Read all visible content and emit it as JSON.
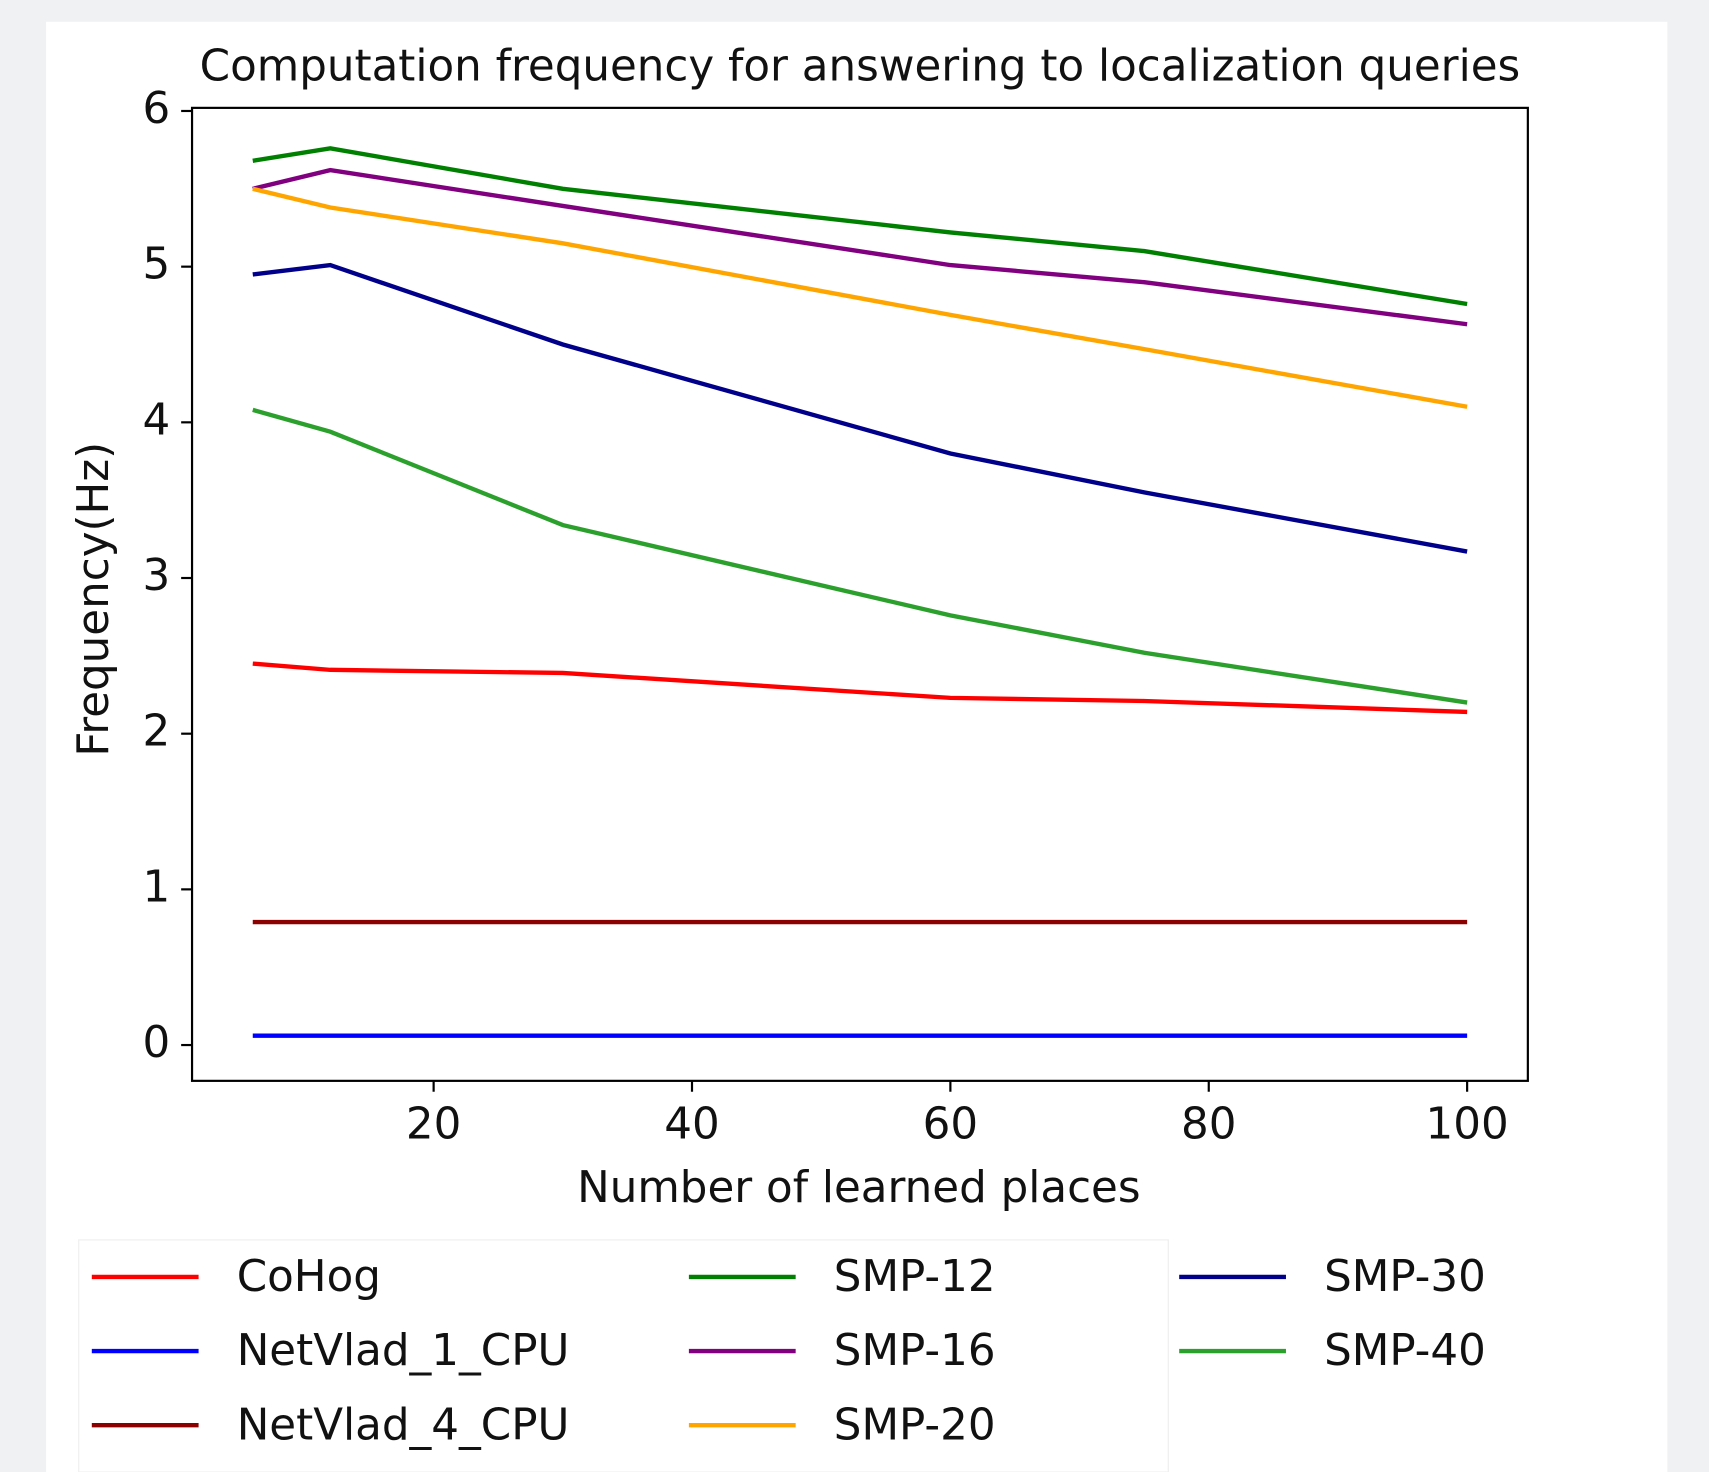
{
  "chart_data": {
    "type": "line",
    "title": "Computation frequency for answering to localization queries",
    "xlabel": "Number of learned places",
    "ylabel": "Frequency(Hz)",
    "x": [
      6,
      12,
      30,
      60,
      75,
      100
    ],
    "xlim": [
      1.3,
      104.7
    ],
    "xticks": [
      20,
      40,
      60,
      80,
      100
    ],
    "ylim": [
      -0.23,
      6.02
    ],
    "yticks": [
      0,
      1,
      2,
      3,
      4,
      5,
      6
    ],
    "legend": "lower center",
    "series": [
      {
        "name": "CoHog",
        "color": "#ff0000",
        "values": [
          2.45,
          2.41,
          2.39,
          2.23,
          2.21,
          2.14
        ]
      },
      {
        "name": "NetVlad_1_CPU",
        "color": "#0000ff",
        "values": [
          0.06,
          0.06,
          0.06,
          0.06,
          0.06,
          0.06
        ]
      },
      {
        "name": "NetVlad_4_CPU",
        "color": "#8b0000",
        "values": [
          0.79,
          0.79,
          0.79,
          0.79,
          0.79,
          0.79
        ]
      },
      {
        "name": "SMP-12",
        "color": "#008000",
        "values": [
          5.68,
          5.76,
          5.5,
          5.22,
          5.1,
          4.76
        ]
      },
      {
        "name": "SMP-16",
        "color": "#800080",
        "values": [
          5.5,
          5.62,
          5.39,
          5.01,
          4.9,
          4.63
        ]
      },
      {
        "name": "SMP-20",
        "color": "#ffa500",
        "values": [
          5.5,
          5.38,
          5.15,
          4.69,
          4.47,
          4.1
        ]
      },
      {
        "name": "SMP-30",
        "color": "#00008b",
        "values": [
          4.95,
          5.01,
          4.5,
          3.8,
          3.55,
          3.17
        ]
      },
      {
        "name": "SMP-40",
        "color": "#2ca02c",
        "values": [
          4.08,
          3.94,
          3.34,
          2.76,
          2.52,
          2.2
        ]
      }
    ]
  }
}
